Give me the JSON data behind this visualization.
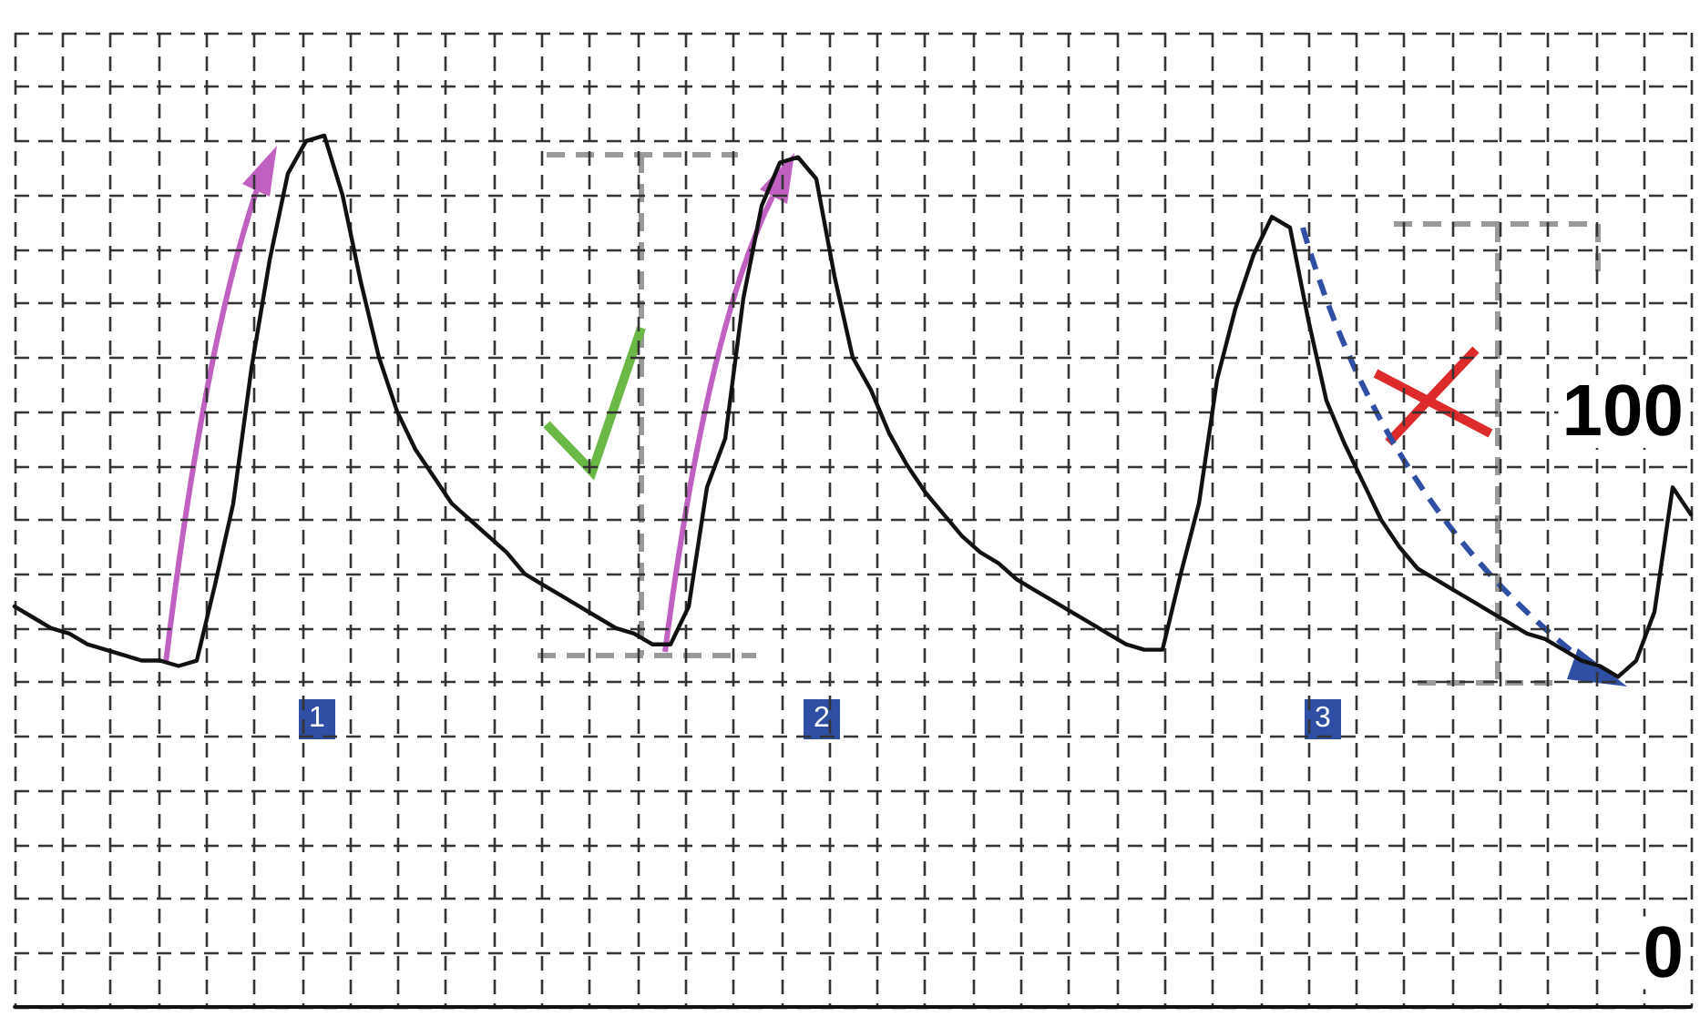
{
  "chart_data": {
    "type": "line",
    "categories": [
      null,
      null,
      null,
      null,
      null,
      null,
      null,
      null,
      null,
      null,
      null,
      null,
      null,
      null,
      null,
      null,
      null,
      null,
      null,
      null,
      null,
      null,
      null,
      null,
      null,
      null,
      null,
      null,
      null,
      null,
      null,
      null,
      null,
      null,
      null,
      null,
      null,
      null,
      null,
      null,
      null,
      null,
      null,
      null,
      null,
      null,
      null,
      null,
      null,
      null,
      null,
      null,
      null,
      null,
      null,
      null,
      null,
      null,
      null,
      null,
      null,
      null,
      null,
      null,
      null,
      null,
      null,
      null,
      null,
      null,
      null,
      null,
      null,
      null,
      null,
      null,
      null,
      null,
      null,
      null,
      null,
      null,
      null,
      null,
      null,
      null,
      null,
      null,
      null,
      null,
      null,
      null,
      null
    ],
    "series": [
      {
        "color": "#111111",
        "values": [
          64,
          62,
          60,
          59,
          57,
          56,
          55,
          54,
          54,
          53,
          54,
          68,
          83,
          108,
          128,
          144,
          150,
          151,
          140,
          124,
          110,
          100,
          93,
          88,
          83,
          80,
          77,
          74,
          70,
          68,
          66,
          64,
          62,
          60,
          59,
          57,
          57,
          64,
          86,
          95,
          121,
          138,
          146,
          147,
          143,
          125,
          110,
          104,
          96,
          90,
          85,
          81,
          77,
          74,
          72,
          69,
          67,
          65,
          63,
          61,
          59,
          57,
          56,
          56,
          70,
          83,
          106,
          119,
          129,
          136,
          134,
          117,
          102,
          94,
          87,
          80,
          75,
          71,
          69,
          67,
          65,
          63,
          61,
          59,
          58,
          56,
          54,
          53,
          51,
          54,
          63,
          86,
          81
        ]
      }
    ],
    "ylim": [
      -10,
      170
    ],
    "yticks": [
      {
        "value": -10,
        "label": null
      },
      0,
      {
        "value": 10,
        "label": null
      },
      {
        "value": 20,
        "label": null
      },
      {
        "value": 30,
        "label": null
      },
      {
        "value": 40,
        "label": null
      },
      {
        "value": 50,
        "label": null
      },
      {
        "value": 60,
        "label": null
      },
      {
        "value": 70,
        "label": null
      },
      {
        "value": 80,
        "label": null
      },
      {
        "value": 90,
        "label": null
      },
      100,
      {
        "value": 110,
        "label": null
      },
      {
        "value": 120,
        "label": null
      },
      {
        "value": 130,
        "label": null
      },
      {
        "value": 140,
        "label": null
      },
      {
        "value": 150,
        "label": null
      },
      {
        "value": 160,
        "label": null
      },
      {
        "value": 170,
        "label": null
      }
    ],
    "annotations": [
      "1",
      "2",
      "3"
    ],
    "grid": true,
    "marker": "none",
    "line_style": "solid"
  }
}
